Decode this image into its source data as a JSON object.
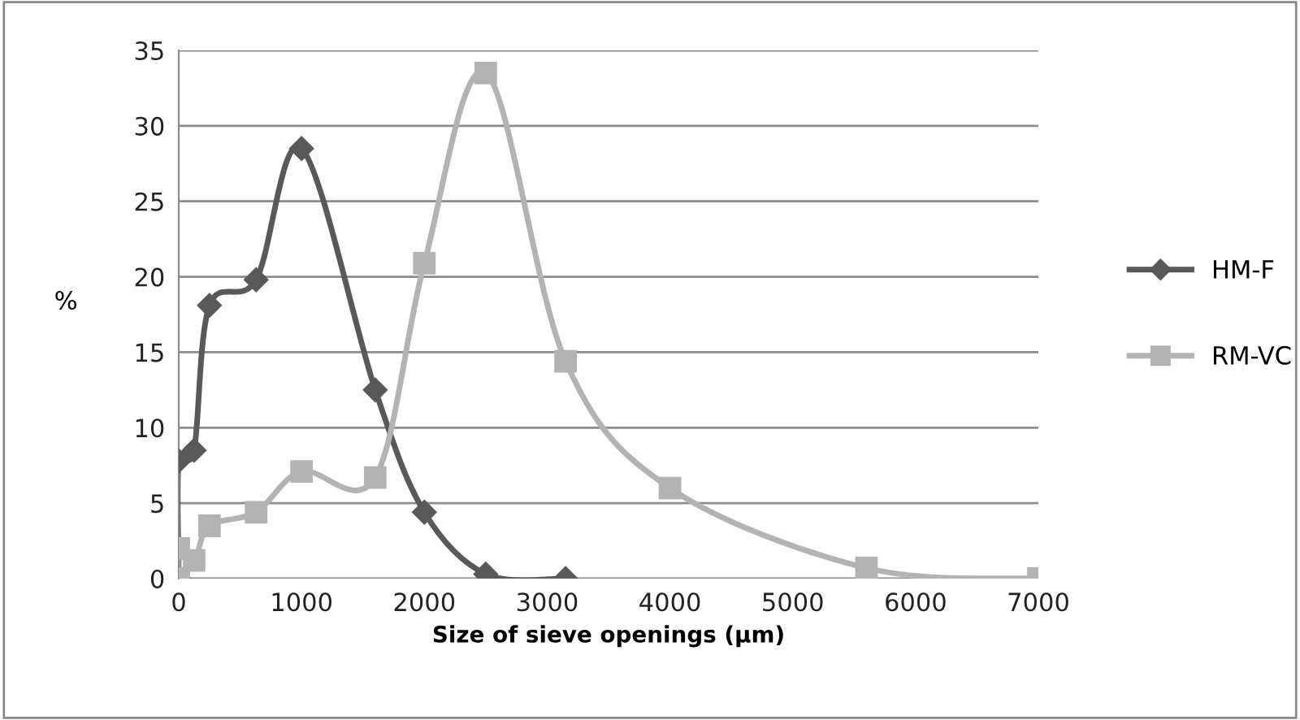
{
  "chart_data": {
    "type": "line",
    "xlabel": "Size of sieve openings (µm)",
    "ylabel": "%",
    "xlim": [
      0,
      7000
    ],
    "xticks": [
      0,
      1000,
      2000,
      3000,
      4000,
      5000,
      6000,
      7000
    ],
    "ylim": [
      0,
      35
    ],
    "yticks": [
      0,
      5,
      10,
      15,
      20,
      25,
      30,
      35
    ],
    "grid": "y",
    "legend": "right",
    "line_style": "solid",
    "series": [
      {
        "name": "HM-F",
        "color": "#595959",
        "marker": "diamond",
        "x": [
          0,
          0,
          125,
          250,
          630,
          1000,
          1600,
          2000,
          2500,
          3150
        ],
        "values": [
          0,
          7.8,
          8.5,
          18.1,
          19.8,
          28.5,
          12.5,
          4.4,
          0.3,
          0
        ]
      },
      {
        "name": "RM-VC",
        "color": "#b3b3b3",
        "marker": "square",
        "x": [
          0,
          0,
          125,
          250,
          630,
          1000,
          1600,
          2000,
          2500,
          3150,
          4000,
          5600,
          7000
        ],
        "values": [
          0,
          2,
          1.2,
          3.5,
          4.4,
          7.1,
          6.7,
          20.9,
          33.5,
          14.4,
          6,
          0.7,
          0
        ]
      }
    ]
  }
}
